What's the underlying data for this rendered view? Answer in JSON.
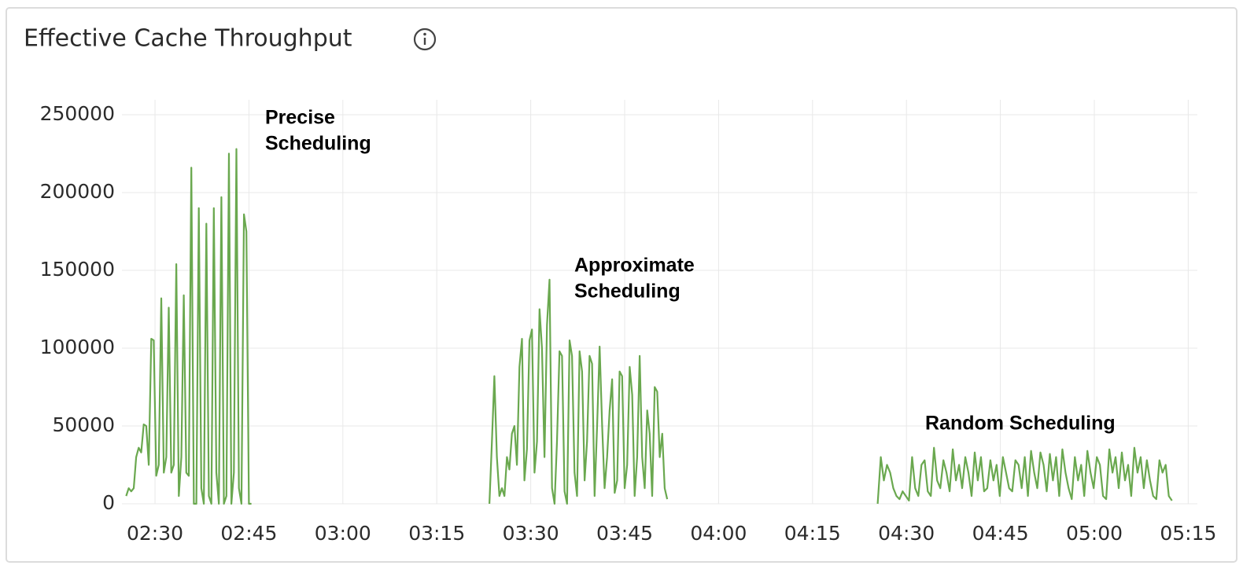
{
  "chart_data": {
    "type": "line",
    "title": "Effective Cache Throughput",
    "color": "#6aa84f",
    "grid": true,
    "annotations": [
      [
        "Precise",
        "Scheduling"
      ],
      [
        "Approximate",
        "Scheduling"
      ],
      [
        "Random Scheduling"
      ]
    ],
    "xlim": [
      144.72,
      316.46
    ],
    "ylim": [
      0,
      250000
    ],
    "xticks": [
      {
        "value": 150,
        "label": "02:30"
      },
      {
        "value": 165,
        "label": "02:45"
      },
      {
        "value": 180,
        "label": "03:00"
      },
      {
        "value": 195,
        "label": "03:15"
      },
      {
        "value": 210,
        "label": "03:30"
      },
      {
        "value": 225,
        "label": "03:45"
      },
      {
        "value": 240,
        "label": "04:00"
      },
      {
        "value": 255,
        "label": "04:15"
      },
      {
        "value": 270,
        "label": "04:30"
      },
      {
        "value": 285,
        "label": "04:45"
      },
      {
        "value": 300,
        "label": "05:00"
      },
      {
        "value": 315,
        "label": "05:15"
      }
    ],
    "yticks": [
      0,
      50000,
      100000,
      150000,
      200000,
      250000
    ],
    "x": [
      145.4,
      145.8,
      146.2,
      146.6,
      147,
      147.4,
      147.8,
      148.2,
      148.6,
      149,
      149.4,
      149.8,
      150.2,
      150.6,
      151,
      151.4,
      151.8,
      152.2,
      152.6,
      153,
      153.4,
      153.8,
      154.2,
      154.6,
      155,
      155.4,
      155.8,
      156.2,
      156.6,
      157,
      157.4,
      157.8,
      158.2,
      158.6,
      159,
      159.4,
      159.8,
      160.2,
      160.6,
      161,
      161.4,
      161.8,
      162.2,
      162.6,
      163,
      163.4,
      163.8,
      164.2,
      164.6,
      165,
      165.4,
      185,
      203.4,
      203.8,
      204.2,
      204.6,
      205,
      205.4,
      205.8,
      206.2,
      206.6,
      207,
      207.4,
      207.8,
      208.2,
      208.6,
      209,
      209.4,
      209.8,
      210.2,
      210.6,
      211,
      211.4,
      211.8,
      212.2,
      212.6,
      213,
      213.4,
      213.8,
      214.2,
      214.6,
      215,
      215.4,
      215.8,
      216.2,
      216.6,
      217,
      217.4,
      217.8,
      218.2,
      218.6,
      219,
      219.4,
      219.8,
      220.2,
      220.6,
      221,
      221.4,
      221.8,
      222.2,
      222.6,
      223,
      223.4,
      223.8,
      224.2,
      224.6,
      225,
      225.4,
      225.8,
      226.2,
      226.6,
      227,
      227.4,
      227.8,
      228.2,
      228.6,
      229,
      229.4,
      229.8,
      230.2,
      230.6,
      231,
      231.4,
      231.8,
      250,
      265.4,
      265.9,
      266.4,
      266.9,
      267.4,
      267.9,
      268.4,
      268.9,
      269.4,
      269.9,
      270.4,
      270.9,
      271.4,
      271.9,
      272.4,
      272.9,
      273.4,
      273.9,
      274.4,
      274.9,
      275.4,
      275.9,
      276.4,
      276.9,
      277.4,
      277.9,
      278.4,
      278.9,
      279.4,
      279.9,
      280.4,
      280.9,
      281.4,
      281.9,
      282.4,
      282.9,
      283.4,
      283.9,
      284.4,
      284.9,
      285.4,
      285.9,
      286.4,
      286.9,
      287.4,
      287.9,
      288.4,
      288.9,
      289.4,
      289.9,
      290.4,
      290.9,
      291.4,
      291.9,
      292.4,
      292.9,
      293.4,
      293.9,
      294.4,
      294.9,
      295.4,
      295.9,
      296.4,
      296.9,
      297.4,
      297.9,
      298.4,
      298.9,
      299.4,
      299.9,
      300.4,
      300.9,
      301.4,
      301.9,
      302.4,
      302.9,
      303.4,
      303.9,
      304.4,
      304.9,
      305.4,
      305.9,
      306.4,
      306.9,
      307.4,
      307.9,
      308.4,
      308.9,
      309.4,
      309.9,
      310.4,
      310.9,
      311.4,
      311.9,
      312.4
    ],
    "values": [
      5000,
      10000,
      8000,
      10000,
      30000,
      36000,
      33000,
      51000,
      50000,
      25000,
      106000,
      105000,
      18000,
      25000,
      132000,
      20000,
      30000,
      126000,
      20000,
      25000,
      154000,
      5000,
      30000,
      134000,
      20000,
      18000,
      216000,
      0,
      0,
      190000,
      10000,
      0,
      180000,
      5000,
      0,
      190000,
      20000,
      0,
      197000,
      0,
      5000,
      225000,
      0,
      20000,
      228000,
      10000,
      0,
      186000,
      175000,
      0,
      0,
      null,
      0,
      40000,
      82000,
      30000,
      5000,
      10000,
      5000,
      30000,
      22000,
      45000,
      50000,
      25000,
      88000,
      106000,
      15000,
      35000,
      105000,
      112000,
      20000,
      40000,
      125000,
      100000,
      30000,
      115000,
      144000,
      10000,
      0,
      40000,
      98000,
      95000,
      8000,
      0,
      105000,
      95000,
      20000,
      5000,
      98000,
      85000,
      15000,
      40000,
      95000,
      90000,
      5000,
      50000,
      101000,
      50000,
      10000,
      30000,
      60000,
      80000,
      7000,
      15000,
      85000,
      82000,
      10000,
      25000,
      88000,
      70000,
      5000,
      30000,
      95000,
      30000,
      10000,
      60000,
      45000,
      5000,
      75000,
      72000,
      30000,
      45000,
      10000,
      3000,
      null,
      0,
      30000,
      15000,
      25000,
      20000,
      10000,
      5000,
      3000,
      8000,
      5000,
      2000,
      30000,
      10000,
      5000,
      25000,
      28000,
      8000,
      5000,
      36000,
      15000,
      10000,
      28000,
      20000,
      8000,
      35000,
      15000,
      25000,
      10000,
      30000,
      20000,
      5000,
      33000,
      15000,
      30000,
      8000,
      10000,
      28000,
      15000,
      25000,
      5000,
      30000,
      20000,
      10000,
      8000,
      28000,
      25000,
      10000,
      30000,
      5000,
      34000,
      20000,
      10000,
      33000,
      25000,
      8000,
      32000,
      15000,
      30000,
      5000,
      35000,
      20000,
      10000,
      3000,
      30000,
      15000,
      25000,
      5000,
      34000,
      20000,
      10000,
      30000,
      25000,
      5000,
      3000,
      35000,
      20000,
      30000,
      10000,
      33000,
      15000,
      25000,
      5000,
      36000,
      20000,
      30000,
      10000,
      28000,
      15000,
      5000,
      3000,
      28000,
      20000,
      25000,
      5000,
      2000
    ]
  }
}
